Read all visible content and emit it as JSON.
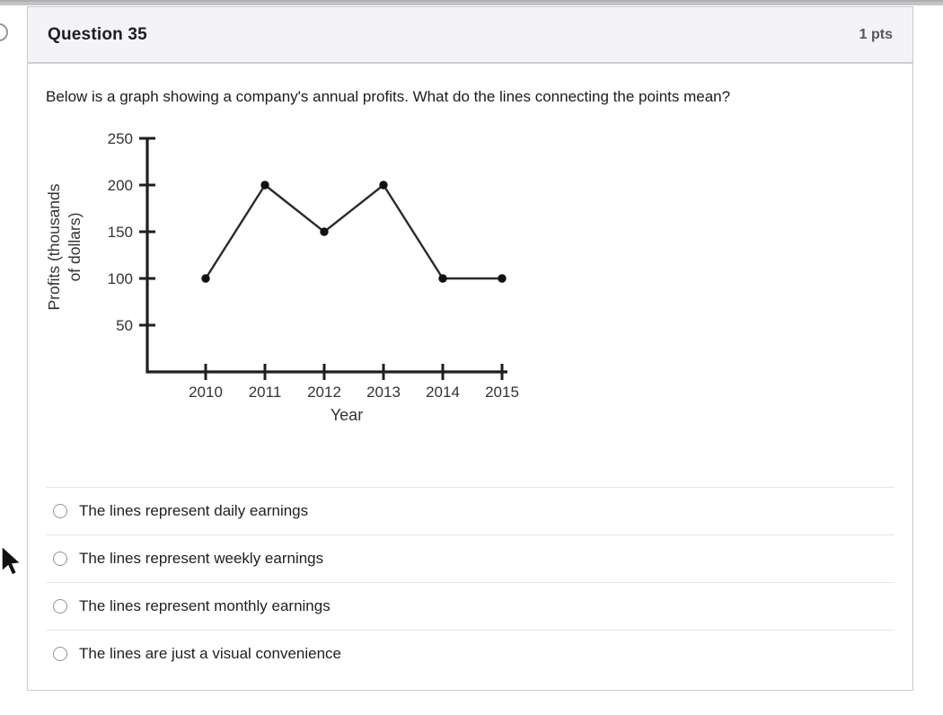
{
  "header": {
    "title": "Question 35",
    "points": "1 pts",
    "background": "#f4f3f6"
  },
  "question": {
    "text": "Below is a graph showing a company's annual profits. What do the lines connecting the points mean?"
  },
  "chart_data": {
    "type": "line",
    "x": [
      "2010",
      "2011",
      "2012",
      "2013",
      "2014",
      "2015"
    ],
    "series": [
      {
        "name": "Annual profits",
        "values": [
          100,
          200,
          150,
          200,
          100,
          100
        ]
      }
    ],
    "xlabel": "Year",
    "ylabel": "Profits (thousands of dollars)",
    "ylabel_lines": [
      "Profits (thousands",
      "of dollars)"
    ],
    "yticks": [
      50,
      100,
      150,
      200,
      250
    ],
    "ylim": [
      0,
      250
    ],
    "grid": false,
    "legend": "none",
    "axis_color": "#1f1f1f",
    "line_color": "#2a2a2a",
    "marker_color": "#111111",
    "label_color": "#333333"
  },
  "options": [
    "The lines represent daily earnings",
    "The lines represent weekly earnings",
    "The lines represent monthly earnings",
    "The lines are just a visual convenience"
  ],
  "chrome": {
    "top_strip_color": "#c3c3c7"
  }
}
